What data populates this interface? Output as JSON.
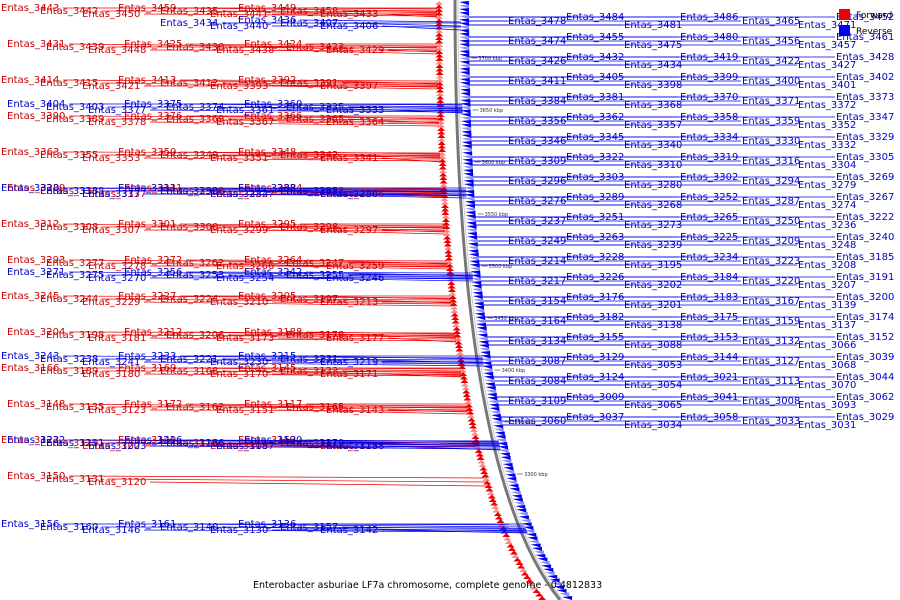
{
  "caption": "Enterobacter asburiae LF7a chromosome, complete genome - 0.4812833",
  "legend": [
    {
      "label": "Forward",
      "color": "#ee0000"
    },
    {
      "label": "Reverse",
      "color": "#0000ee"
    }
  ],
  "colors": {
    "forward": "#ee0000",
    "reverse": "#0000ee",
    "forward_text": "#cc0000",
    "reverse_text": "#0000cc",
    "backbone": "#777777"
  },
  "position_ticks": [
    "3700 kbp",
    "3650 kbp",
    "3600 kbp",
    "3550 kbp",
    "3500 kbp",
    "3450 kbp",
    "3400 kbp",
    "3350 kbp",
    "3300 kbp"
  ],
  "forward_labels": [
    "Entas_3443",
    "Entas_3442",
    "Entas_3450",
    "Entas_3459",
    "Entas_3435",
    "Entas_3441",
    "Entas_3449",
    "Entas_3458",
    "Entas_3433",
    "Entas_3431",
    "Entas_3439",
    "Entas_3448",
    "Entas_3425",
    "Entas_3430",
    "Entas_3438",
    "Entas_3424",
    "Entas_3423",
    "Entas_3429",
    "Entas_3414",
    "Entas_3415",
    "Entas_3421",
    "Entas_3413",
    "Entas_3412",
    "Entas_3393",
    "Entas_3392",
    "Entas_3391",
    "Entas_3397",
    "Entas_3390",
    "Entas_3389",
    "Entas_3378",
    "Entas_3376",
    "Entas_3369",
    "Entas_3367",
    "Entas_3366",
    "Entas_3365",
    "Entas_3364",
    "Entas_3363",
    "Entas_3355",
    "Entas_3353",
    "Entas_3350",
    "Entas_3349",
    "Entas_3351",
    "Entas_3348",
    "Entas_3342",
    "Entas_3341",
    "Entas_3339",
    "Entas_3338",
    "Entas_3337",
    "Entas_3331",
    "Entas_3328",
    "Entas_3327",
    "Entas_3324",
    "Entas_3323",
    "Entas_3306",
    "Entas_3312",
    "Entas_3308",
    "Entas_3307",
    "Entas_3301",
    "Entas_3300",
    "Entas_3299",
    "Entas_3295",
    "Entas_3298",
    "Entas_3297",
    "Entas_3293",
    "Entas_3277",
    "Entas_3278",
    "Entas_3272",
    "Entas_3262",
    "Entas_3266",
    "Entas_3264",
    "Entas_3247",
    "Entas_3259",
    "Entas_3245",
    "Entas_3244",
    "Entas_3229",
    "Entas_3227",
    "Entas_3224",
    "Entas_3210",
    "Entas_3205",
    "Entas_3197",
    "Entas_3213",
    "Entas_3204",
    "Entas_3198",
    "Entas_3181",
    "Entas_3212",
    "Entas_3206",
    "Entas_3173",
    "Entas_3188",
    "Entas_3178",
    "Entas_3177",
    "Entas_3166",
    "Entas_3189",
    "Entas_3180",
    "Entas_3169",
    "Entas_3168",
    "Entas_3170",
    "Entas_3145",
    "Entas_3133",
    "Entas_3171",
    "Entas_3148",
    "Entas_3135",
    "Entas_3123",
    "Entas_3172",
    "Entas_3162",
    "Entas_3151",
    "Entas_3117",
    "Entas_3165",
    "Entas_3143",
    "Entas_3122",
    "Entas_3119",
    "Entas_3102",
    "Entas_3149",
    "Entas_3126",
    "Entas_3105",
    "Entas_3163",
    "Entas_3141",
    "Entas_3128",
    "Entas_3150",
    "Entas_3131",
    "Entas_3120"
  ],
  "reverse_labels": [
    "Entas_3434",
    "Entas_3440",
    "Entas_3436",
    "Entas_3407",
    "Entas_3406",
    "Entas_3404",
    "Entas_3403",
    "Entas_3377",
    "Entas_3375",
    "Entas_3374",
    "Entas_3361",
    "Entas_3360",
    "Entas_3335",
    "Entas_3333",
    "Entas_3320",
    "Entas_3318",
    "Entas_3317",
    "Entas_3311",
    "Entas_3290",
    "Entas_3284",
    "Entas_3288",
    "Entas_3285",
    "Entas_3286",
    "Entas_3271",
    "Entas_3275",
    "Entas_3270",
    "Entas_3256",
    "Entas_3253",
    "Entas_3254",
    "Entas_3242",
    "Entas_3255",
    "Entas_3246",
    "Entas_3243",
    "Entas_3238",
    "Entas_3241",
    "Entas_3233",
    "Entas_3221",
    "Entas_3230",
    "Entas_3215",
    "Entas_3231",
    "Entas_3219",
    "Entas_3232",
    "Entas_3211",
    "Entas_3203",
    "Entas_3216",
    "Entas_3186",
    "Entas_3187",
    "Entas_3190",
    "Entas_3179",
    "Entas_3158",
    "Entas_3156",
    "Entas_3160",
    "Entas_3146",
    "Entas_3161",
    "Entas_3140",
    "Entas_3130",
    "Entas_3136",
    "Entas_3157",
    "Entas_3142",
    "Entas_3086",
    "Entas_3484",
    "Entas_3478",
    "Entas_3481",
    "Entas_3486",
    "Entas_3465",
    "Entas_3471",
    "Entas_3452",
    "Entas_3455",
    "Entas_3474",
    "Entas_3475",
    "Entas_3480",
    "Entas_3456",
    "Entas_3457",
    "Entas_3461",
    "Entas_3432",
    "Entas_3426",
    "Entas_3434",
    "Entas_3419",
    "Entas_3422",
    "Entas_3427",
    "Entas_3428",
    "Entas_3405",
    "Entas_3411",
    "Entas_3398",
    "Entas_3399",
    "Entas_3400",
    "Entas_3401",
    "Entas_3402",
    "Entas_3381",
    "Entas_3384",
    "Entas_3368",
    "Entas_3370",
    "Entas_3371",
    "Entas_3372",
    "Entas_3373",
    "Entas_3362",
    "Entas_3356",
    "Entas_3357",
    "Entas_3358",
    "Entas_3359",
    "Entas_3352",
    "Entas_3347",
    "Entas_3345",
    "Entas_3346",
    "Entas_3340",
    "Entas_3334",
    "Entas_3330",
    "Entas_3332",
    "Entas_3329",
    "Entas_3322",
    "Entas_3309",
    "Entas_3310",
    "Entas_3319",
    "Entas_3316",
    "Entas_3304",
    "Entas_3305",
    "Entas_3303",
    "Entas_3296",
    "Entas_3280",
    "Entas_3302",
    "Entas_3294",
    "Entas_3279",
    "Entas_3269",
    "Entas_3289",
    "Entas_3276",
    "Entas_3268",
    "Entas_3252",
    "Entas_3287",
    "Entas_3274",
    "Entas_3267",
    "Entas_3251",
    "Entas_3237",
    "Entas_3273",
    "Entas_3265",
    "Entas_3250",
    "Entas_3236",
    "Entas_3222",
    "Entas_3263",
    "Entas_3249",
    "Entas_3239",
    "Entas_3225",
    "Entas_3209",
    "Entas_3248",
    "Entas_3240",
    "Entas_3228",
    "Entas_3214",
    "Entas_3195",
    "Entas_3234",
    "Entas_3223",
    "Entas_3208",
    "Entas_3185",
    "Entas_3226",
    "Entas_3217",
    "Entas_3202",
    "Entas_3184",
    "Entas_3220",
    "Entas_3207",
    "Entas_3191",
    "Entas_3176",
    "Entas_3154",
    "Entas_3201",
    "Entas_3183",
    "Entas_3167",
    "Entas_3139",
    "Entas_3200",
    "Entas_3182",
    "Entas_3164",
    "Entas_3138",
    "Entas_3175",
    "Entas_3159",
    "Entas_3137",
    "Entas_3174",
    "Entas_3155",
    "Entas_3134",
    "Entas_3088",
    "Entas_3153",
    "Entas_3132",
    "Entas_3066",
    "Entas_3152",
    "Entas_3129",
    "Entas_3087",
    "Entas_3053",
    "Entas_3144",
    "Entas_3127",
    "Entas_3068",
    "Entas_3039",
    "Entas_3124",
    "Entas_3084",
    "Entas_3054",
    "Entas_3021",
    "Entas_3113",
    "Entas_3070",
    "Entas_3044",
    "Entas_3009",
    "Entas_3109",
    "Entas_3065",
    "Entas_3041",
    "Entas_3008",
    "Entas_3093",
    "Entas_3062",
    "Entas_3037",
    "Entas_3060",
    "Entas_3034",
    "Entas_3058",
    "Entas_3033",
    "Entas_3031",
    "Entas_3029"
  ]
}
